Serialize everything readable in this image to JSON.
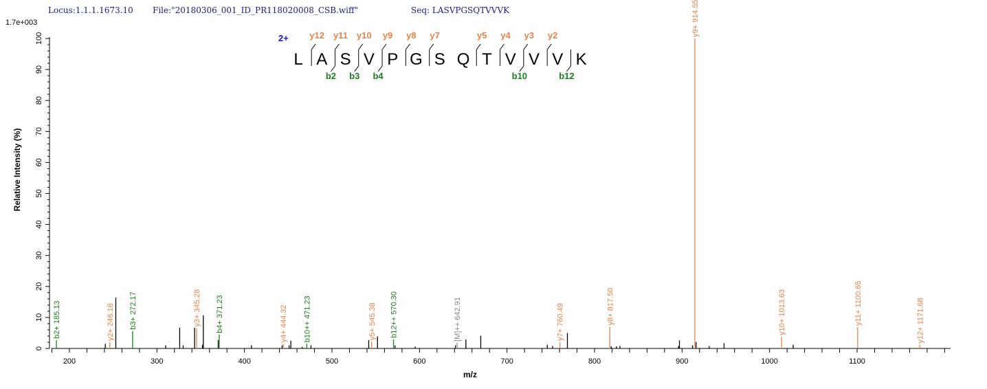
{
  "header": {
    "locus": "Locus:1.1.1.1673.10",
    "file": "File:\"20180306_001_ID_PR118020008_CSB.wiff\"",
    "seq": "Seq: LASVPGSQTVVVK",
    "max_intensity": "1.7e+003"
  },
  "colors": {
    "b_ion": "#1a7f1a",
    "y_ion": "#e8834a",
    "precursor": "#888888",
    "unassigned": "#000000",
    "charge": "#1515d0"
  },
  "peptide": {
    "charge": "2+",
    "residues": [
      "L",
      "A",
      "S",
      "V",
      "P",
      "G",
      "S",
      "Q",
      "T",
      "V",
      "V",
      "V",
      "K"
    ],
    "y_ions": [
      {
        "label": "y12",
        "after": 1
      },
      {
        "label": "y11",
        "after": 2
      },
      {
        "label": "y10",
        "after": 3
      },
      {
        "label": "y9",
        "after": 4
      },
      {
        "label": "y8",
        "after": 5
      },
      {
        "label": "y7",
        "after": 6
      },
      {
        "label": "y5",
        "after": 8
      },
      {
        "label": "y4",
        "after": 9
      },
      {
        "label": "y3",
        "after": 10
      },
      {
        "label": "y2",
        "after": 11
      }
    ],
    "b_ions": [
      {
        "label": "b2",
        "after": 2
      },
      {
        "label": "b3",
        "after": 3
      },
      {
        "label": "b4",
        "after": 4
      },
      {
        "label": "b10",
        "after": 10
      },
      {
        "label": "b12",
        "after": 12
      }
    ]
  },
  "chart_data": {
    "type": "bar",
    "xlabel": "m/z",
    "ylabel": "Relative   Intensity (%)",
    "xlim": [
      180,
      1207
    ],
    "ylim": [
      0,
      100
    ],
    "xticks": [
      200,
      300,
      400,
      500,
      600,
      700,
      800,
      900,
      1000,
      1100
    ],
    "yticks": [
      0,
      10,
      20,
      30,
      40,
      50,
      60,
      70,
      80,
      90,
      100
    ],
    "grid": false,
    "annotated_peaks": [
      {
        "mz": 185.13,
        "intensity": 2.7,
        "type": "b",
        "label": "b2+ 185.13"
      },
      {
        "mz": 246.18,
        "intensity": 2.0,
        "type": "y",
        "label": "y2+ 246.18"
      },
      {
        "mz": 272.17,
        "intensity": 5.6,
        "type": "b",
        "label": "b3+ 272.17"
      },
      {
        "mz": 345.28,
        "intensity": 6.5,
        "type": "y",
        "label": "y3+ 345.28"
      },
      {
        "mz": 371.23,
        "intensity": 4.5,
        "type": "b",
        "label": "b4+ 371.23"
      },
      {
        "mz": 444.32,
        "intensity": 1.5,
        "type": "y",
        "label": "y4+ 444.32"
      },
      {
        "mz": 471.23,
        "intensity": 1.5,
        "type": "b",
        "label": "b10++ 471.23"
      },
      {
        "mz": 545.38,
        "intensity": 2.2,
        "type": "y",
        "label": "y5+ 545.38"
      },
      {
        "mz": 570.3,
        "intensity": 2.9,
        "type": "b",
        "label": "b12++ 570.30"
      },
      {
        "mz": 642.91,
        "intensity": 1.8,
        "type": "precursor",
        "label": "[M]++ 642.91"
      },
      {
        "mz": 760.49,
        "intensity": 2.0,
        "type": "y",
        "label": "y7+ 760.49"
      },
      {
        "mz": 817.5,
        "intensity": 7.0,
        "type": "y",
        "label": "y8+ 817.50"
      },
      {
        "mz": 914.55,
        "intensity": 100,
        "type": "y",
        "label": "y9+ 914.55"
      },
      {
        "mz": 1013.63,
        "intensity": 3.8,
        "type": "y",
        "label": "y10+ 1013.63"
      },
      {
        "mz": 1100.65,
        "intensity": 6.9,
        "type": "y",
        "label": "y11+ 1100.65"
      },
      {
        "mz": 1171.68,
        "intensity": 1.2,
        "type": "y",
        "label": "y12+ 1171.68"
      }
    ],
    "unassigned_peaks": [
      [
        241,
        1.5
      ],
      [
        253,
        16.4
      ],
      [
        310,
        1.0
      ],
      [
        326,
        6.7
      ],
      [
        330,
        1.0
      ],
      [
        343,
        6.7
      ],
      [
        352,
        1.2
      ],
      [
        353,
        10.7
      ],
      [
        370,
        2.7
      ],
      [
        408,
        1.0
      ],
      [
        443,
        1.0
      ],
      [
        451,
        1.0
      ],
      [
        453,
        2.5
      ],
      [
        466,
        0.5
      ],
      [
        476,
        1.0
      ],
      [
        542,
        2.7
      ],
      [
        552,
        3.9
      ],
      [
        572,
        1.0
      ],
      [
        595,
        0.6
      ],
      [
        641,
        1.0
      ],
      [
        653,
        2.9
      ],
      [
        670,
        4.1
      ],
      [
        746,
        1.2
      ],
      [
        752,
        0.8
      ],
      [
        769,
        5.0
      ],
      [
        819,
        0.7
      ],
      [
        825,
        0.7
      ],
      [
        829,
        0.8
      ],
      [
        896,
        0.8
      ],
      [
        897,
        2.6
      ],
      [
        912,
        1.0
      ],
      [
        916,
        2.1
      ],
      [
        931,
        0.8
      ],
      [
        948,
        1.7
      ],
      [
        1027,
        1.2
      ]
    ]
  }
}
